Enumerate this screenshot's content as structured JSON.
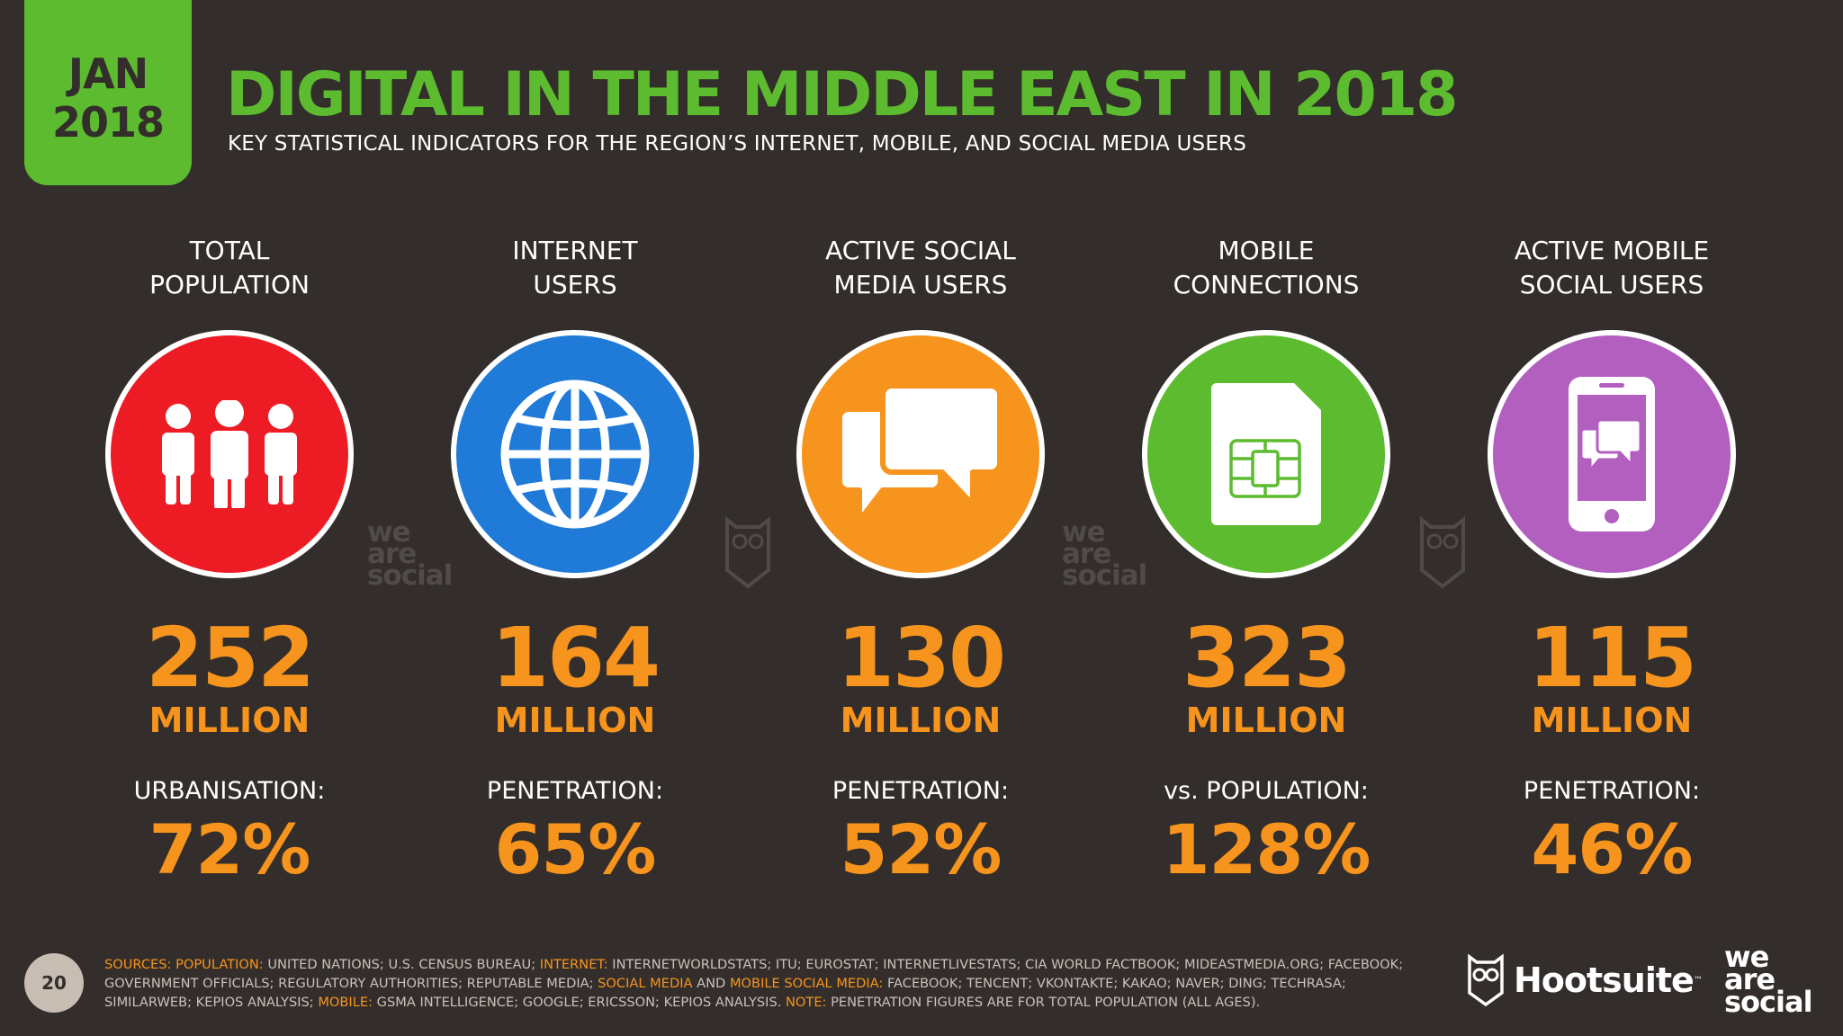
{
  "badge": {
    "month": "JAN",
    "year": "2018"
  },
  "title": "DIGITAL IN THE MIDDLE EAST IN 2018",
  "subtitle": "KEY STATISTICAL INDICATORS FOR THE REGION’S INTERNET, MOBILE, AND SOCIAL MEDIA USERS",
  "columns": [
    {
      "label": "TOTAL\nPOPULATION",
      "icon": "people-icon",
      "color": "#ed1c24",
      "value": "252",
      "unit": "MILLION",
      "metric_label": "URBANISATION:",
      "metric_value": "72%"
    },
    {
      "label": "INTERNET\nUSERS",
      "icon": "globe-icon",
      "color": "#1f7ad8",
      "value": "164",
      "unit": "MILLION",
      "metric_label": "PENETRATION:",
      "metric_value": "65%"
    },
    {
      "label": "ACTIVE SOCIAL\nMEDIA USERS",
      "icon": "chat-bubbles-icon",
      "color": "#f7941d",
      "value": "130",
      "unit": "MILLION",
      "metric_label": "PENETRATION:",
      "metric_value": "52%"
    },
    {
      "label": "MOBILE\nCONNECTIONS",
      "icon": "sim-card-icon",
      "color": "#5dbb2f",
      "value": "323",
      "unit": "MILLION",
      "metric_label": "vs. POPULATION:",
      "metric_value": "128%"
    },
    {
      "label": "ACTIVE MOBILE\nSOCIAL USERS",
      "icon": "smartphone-chat-icon",
      "color": "#b25fc0",
      "value": "115",
      "unit": "MILLION",
      "metric_label": "PENETRATION:",
      "metric_value": "46%"
    }
  ],
  "watermark": {
    "line1": "we",
    "line2": "are",
    "line3": "social"
  },
  "page_number": "20",
  "sources": {
    "sources_label": "SOURCES:",
    "population_label": "POPULATION:",
    "population_text": " UNITED NATIONS; U.S. CENSUS BUREAU; ",
    "internet_label": "INTERNET:",
    "internet_text": " INTERNETWORLDSTATS; ITU; EUROSTAT; INTERNETLIVESTATS; CIA WORLD FACTBOOK; MIDEASTMEDIA.ORG; FACEBOOK; GOVERNMENT OFFICIALS; REGULATORY AUTHORITIES; REPUTABLE MEDIA; ",
    "social_label": "SOCIAL MEDIA",
    "and_text": " AND ",
    "mobile_social_label": "MOBILE SOCIAL MEDIA:",
    "social_text": " FACEBOOK; TENCENT; VKONTAKTE; KAKAO; NAVER; DING; TECHRASA; SIMILARWEB; KEPIOS ANALYSIS; ",
    "mobile_label": "MOBILE:",
    "mobile_text": " GSMA INTELLIGENCE; GOOGLE; ERICSSON; KEPIOS ANALYSIS. ",
    "note_label": "NOTE:",
    "note_text": " PENETRATION FIGURES ARE FOR TOTAL POPULATION (ALL AGES)."
  },
  "brand": {
    "hootsuite": "Hootsuite",
    "tm": "™",
    "was_line1": "we",
    "was_line2": "are",
    "was_line3": "social"
  }
}
